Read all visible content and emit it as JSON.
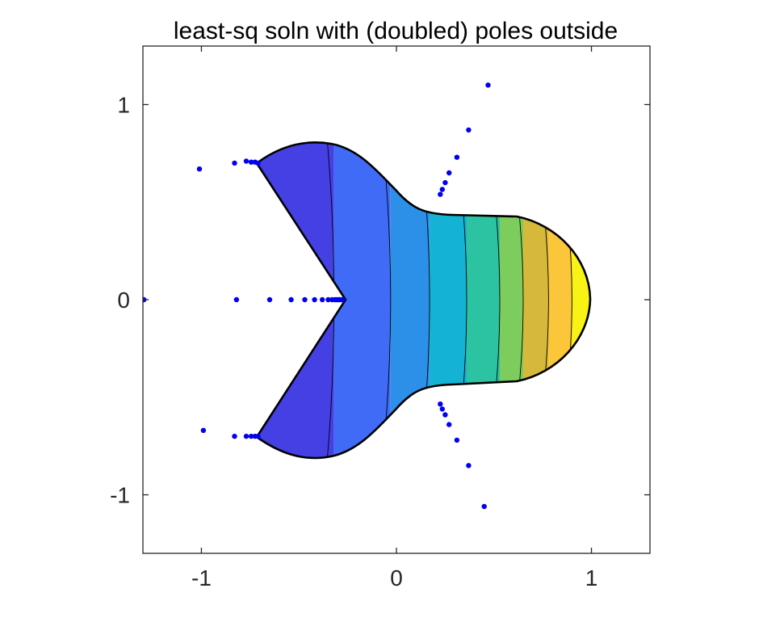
{
  "chart_data": {
    "type": "contour",
    "title": "least-sq soln with (doubled) poles outside",
    "xlabel": "",
    "ylabel": "",
    "xlim": [
      -1.3,
      1.3
    ],
    "ylim": [
      -1.3,
      1.3
    ],
    "xticks": [
      -1,
      0,
      1
    ],
    "yticks": [
      -1,
      0,
      1
    ],
    "xtick_labels": [
      "-1",
      "0",
      "1"
    ],
    "ytick_labels": [
      "-1",
      "0",
      "1"
    ],
    "grid": false,
    "colormap": "parula",
    "bands": [
      {
        "x_from": -0.73,
        "x_to": -0.32,
        "color": "#4440e3"
      },
      {
        "x_from": -0.32,
        "x_to": -0.03,
        "color": "#3f6bf6"
      },
      {
        "x_from": -0.03,
        "x_to": 0.17,
        "color": "#2c8fe8"
      },
      {
        "x_from": 0.17,
        "x_to": 0.36,
        "color": "#14b2d4"
      },
      {
        "x_from": 0.36,
        "x_to": 0.53,
        "color": "#2cc3a3"
      },
      {
        "x_from": 0.53,
        "x_to": 0.65,
        "color": "#7ccc5e"
      },
      {
        "x_from": 0.65,
        "x_to": 0.78,
        "color": "#d6b83b"
      },
      {
        "x_from": 0.78,
        "x_to": 0.9,
        "color": "#fcc63a"
      },
      {
        "x_from": 0.9,
        "x_to": 1.0,
        "color": "#f8f215"
      }
    ],
    "boundary_color": "#000000",
    "pole_color": "#0000f0",
    "poles": [
      {
        "x": 0.47,
        "y": 1.1
      },
      {
        "x": 0.37,
        "y": 0.87
      },
      {
        "x": 0.31,
        "y": 0.73
      },
      {
        "x": 0.27,
        "y": 0.65
      },
      {
        "x": 0.25,
        "y": 0.6
      },
      {
        "x": 0.235,
        "y": 0.565
      },
      {
        "x": 0.225,
        "y": 0.54
      },
      {
        "x": 0.45,
        "y": -1.06
      },
      {
        "x": 0.37,
        "y": -0.85
      },
      {
        "x": 0.31,
        "y": -0.72
      },
      {
        "x": 0.27,
        "y": -0.64
      },
      {
        "x": 0.25,
        "y": -0.59
      },
      {
        "x": 0.235,
        "y": -0.56
      },
      {
        "x": 0.225,
        "y": -0.535
      },
      {
        "x": -1.01,
        "y": 0.67
      },
      {
        "x": -0.83,
        "y": 0.7
      },
      {
        "x": -0.77,
        "y": 0.71
      },
      {
        "x": -0.745,
        "y": 0.705
      },
      {
        "x": -0.725,
        "y": 0.705
      },
      {
        "x": -0.71,
        "y": 0.7
      },
      {
        "x": -0.99,
        "y": -0.67
      },
      {
        "x": -0.83,
        "y": -0.7
      },
      {
        "x": -0.77,
        "y": -0.7
      },
      {
        "x": -0.745,
        "y": -0.7
      },
      {
        "x": -0.725,
        "y": -0.7
      },
      {
        "x": -0.71,
        "y": -0.7
      },
      {
        "x": -1.295,
        "y": 0.0
      },
      {
        "x": -0.82,
        "y": 0.0
      },
      {
        "x": -0.65,
        "y": 0.0
      },
      {
        "x": -0.54,
        "y": 0.0
      },
      {
        "x": -0.47,
        "y": 0.0
      },
      {
        "x": -0.42,
        "y": 0.0
      },
      {
        "x": -0.38,
        "y": 0.0
      },
      {
        "x": -0.35,
        "y": 0.0
      },
      {
        "x": -0.33,
        "y": 0.0
      },
      {
        "x": -0.315,
        "y": 0.0
      },
      {
        "x": -0.305,
        "y": 0.0
      },
      {
        "x": -0.295,
        "y": 0.0
      },
      {
        "x": -0.285,
        "y": 0.0
      },
      {
        "x": -0.275,
        "y": 0.0
      }
    ]
  }
}
